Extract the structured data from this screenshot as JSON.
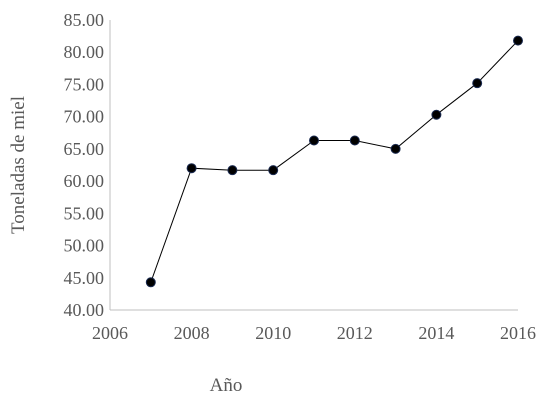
{
  "chart_data": {
    "type": "scatter",
    "mode": "lines+markers",
    "title": "",
    "xlabel": "Año",
    "ylabel": "Toneladas de miel",
    "xlim": [
      2006,
      2016
    ],
    "ylim": [
      40,
      85
    ],
    "x_ticks": [
      2006,
      2008,
      2010,
      2012,
      2014,
      2016
    ],
    "x_tick_labels": [
      "2006",
      "2008",
      "2010",
      "2012",
      "2014",
      "2016"
    ],
    "y_ticks": [
      40,
      45,
      50,
      55,
      60,
      65,
      70,
      75,
      80,
      85
    ],
    "y_tick_labels": [
      "40.00",
      "45.00",
      "50.00",
      "55.00",
      "60.00",
      "65.00",
      "70.00",
      "75.00",
      "80.00",
      "85.00"
    ],
    "grid": false,
    "legend": "none",
    "line_color": "#000000",
    "marker_color": "#000000",
    "axis_color": "#bfbfbf",
    "series": [
      {
        "x": [
          2007,
          2008,
          2009,
          2010,
          2011,
          2012,
          2013,
          2014,
          2015,
          2016
        ],
        "y": [
          44.3,
          62.0,
          61.7,
          61.7,
          66.3,
          66.3,
          65.0,
          70.3,
          75.2,
          81.8
        ]
      }
    ]
  }
}
